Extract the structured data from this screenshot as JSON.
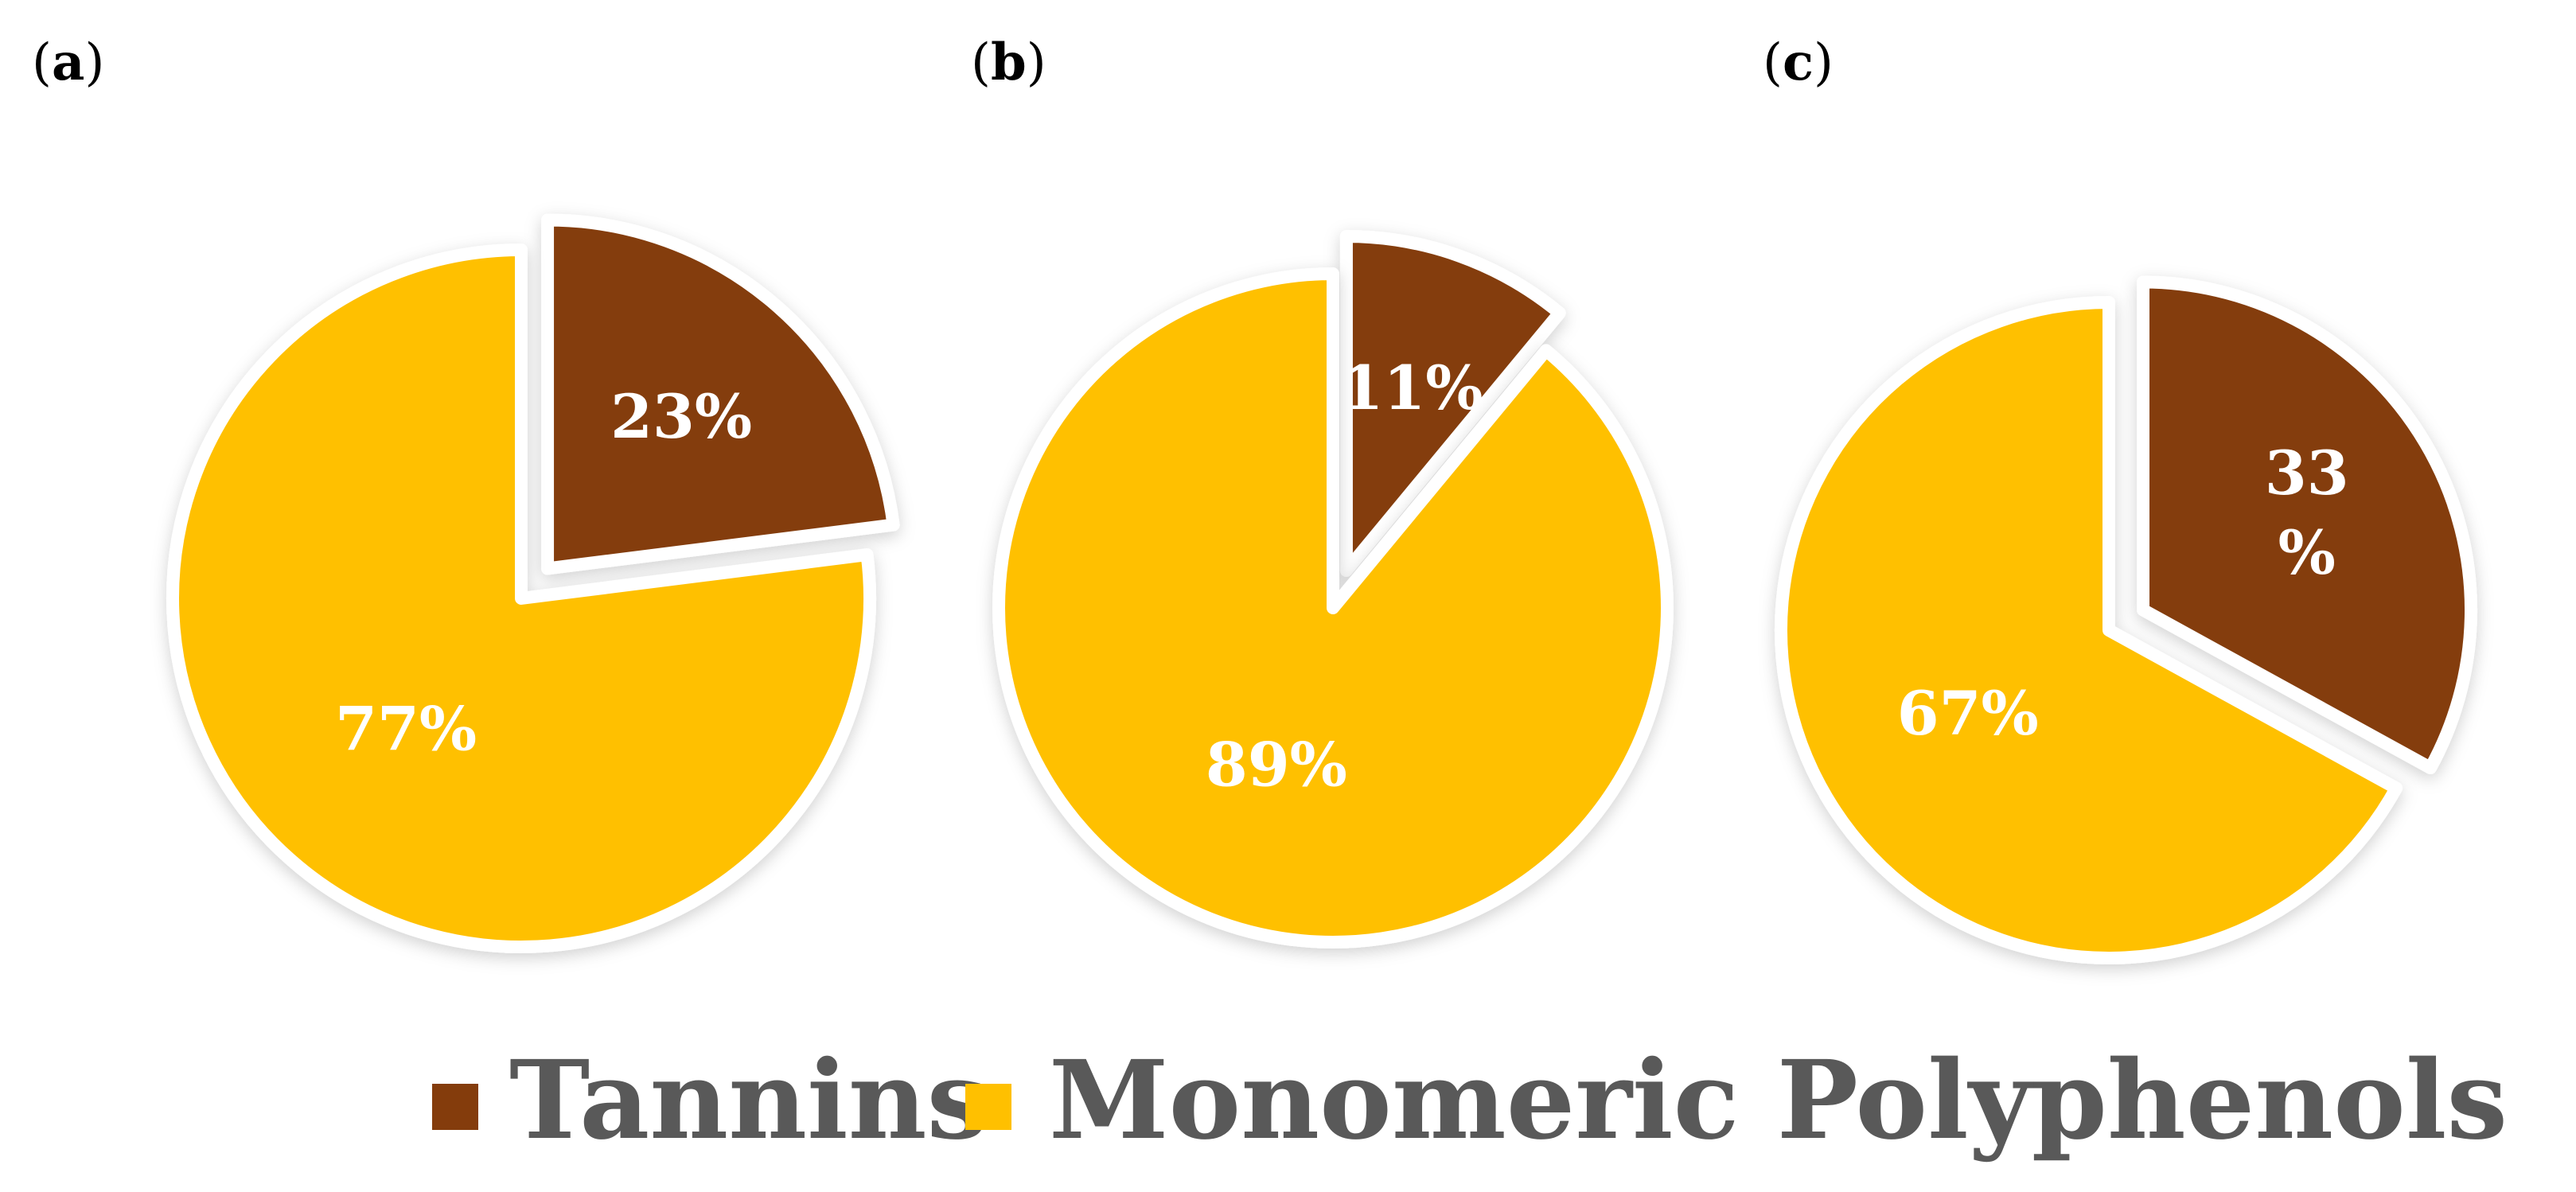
{
  "chart_data": [
    {
      "type": "pie",
      "panel": "a",
      "categories": [
        "Tannins",
        "Monomeric Polyphenols"
      ],
      "values": [
        23,
        77
      ],
      "labels": [
        "23%",
        "77%"
      ]
    },
    {
      "type": "pie",
      "panel": "b",
      "categories": [
        "Tannins",
        "Monomeric Polyphenols"
      ],
      "values": [
        11,
        89
      ],
      "labels": [
        "11%",
        "89%"
      ]
    },
    {
      "type": "pie",
      "panel": "c",
      "categories": [
        "Tannins",
        "Monomeric Polyphenols"
      ],
      "values": [
        33,
        67
      ],
      "labels": [
        "33 %",
        "67%"
      ]
    }
  ],
  "legend": {
    "placement": "bottom",
    "items": [
      {
        "label": "Tannins",
        "color": "#843C0C"
      },
      {
        "label": "Monomeric Polyphenols",
        "color": "#FFC000"
      }
    ]
  },
  "colors": {
    "tannins": "#843C0C",
    "monomeric": "#FFC000",
    "label_text": "#FFFFFF",
    "legend_text": "#595959"
  }
}
